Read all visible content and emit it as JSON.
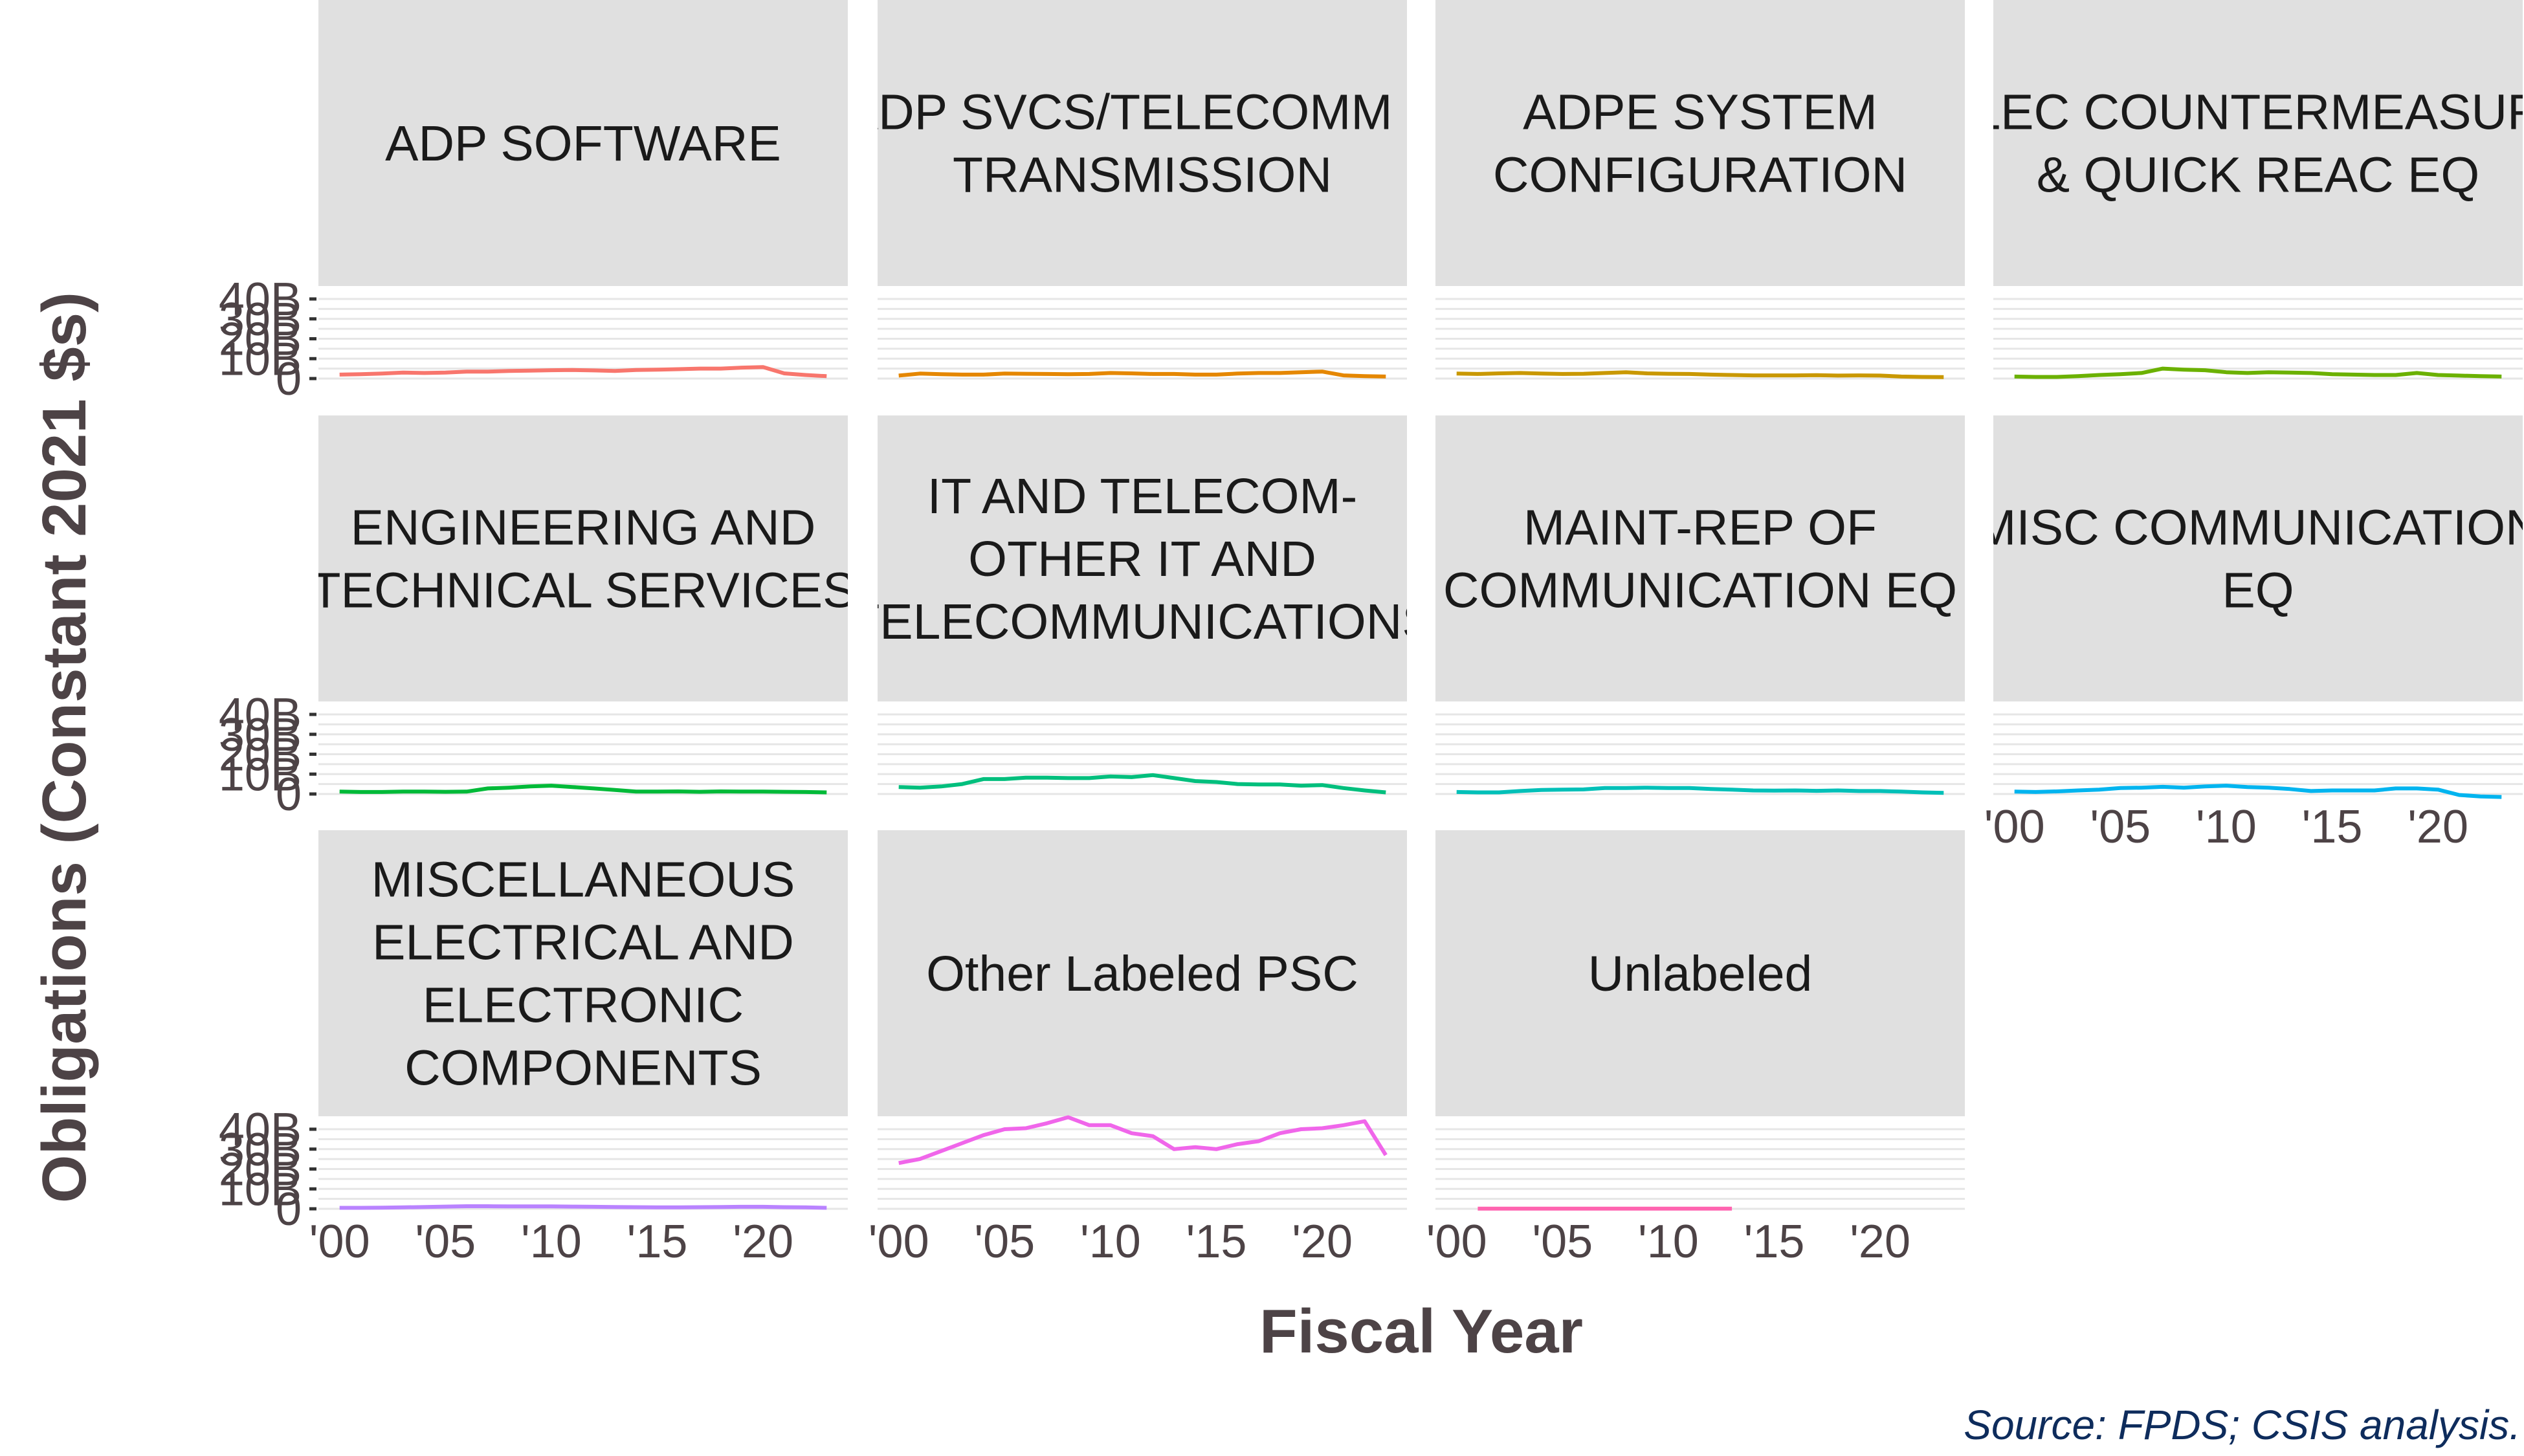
{
  "chart_data": {
    "type": "line",
    "ylabel": "Obligations (Constant 2021 $s)",
    "xlabel": "Fiscal Year",
    "caption": "Source: FPDS; CSIS analysis.",
    "x_range": [
      1999,
      2024
    ],
    "x_ticks": [
      2000,
      2005,
      2010,
      2015,
      2020
    ],
    "x_tick_labels": [
      "'00",
      "'05",
      "'10",
      "'15",
      "'20"
    ],
    "y_range": [
      0,
      40000000000
    ],
    "y_ticks": [
      0,
      10000000000,
      20000000000,
      30000000000,
      40000000000
    ],
    "y_tick_labels": [
      "0",
      "10B",
      "20B",
      "30B",
      "40B"
    ],
    "panels": [
      {
        "title": "ADP SOFTWARE",
        "color": "#F8766D",
        "x": [
          2000,
          2001,
          2002,
          2003,
          2004,
          2005,
          2006,
          2007,
          2008,
          2009,
          2010,
          2011,
          2012,
          2013,
          2014,
          2015,
          2016,
          2017,
          2018,
          2019,
          2020,
          2021,
          2022,
          2023
        ],
        "values": [
          2000000000.0,
          2200000000.0,
          2500000000.0,
          3000000000.0,
          2800000000.0,
          3000000000.0,
          3500000000.0,
          3500000000.0,
          3800000000.0,
          4000000000.0,
          4200000000.0,
          4300000000.0,
          4100000000.0,
          3800000000.0,
          4300000000.0,
          4500000000.0,
          4700000000.0,
          5000000000.0,
          5000000000.0,
          5500000000.0,
          5800000000.0,
          2600000000.0,
          1800000000.0,
          1200000000.0
        ]
      },
      {
        "title": "ADP SVCS/TELECOMM & TRANSMISSION",
        "color": "#E58700",
        "x": [
          2000,
          2001,
          2002,
          2003,
          2004,
          2005,
          2006,
          2007,
          2008,
          2009,
          2010,
          2011,
          2012,
          2013,
          2014,
          2015,
          2016,
          2017,
          2018,
          2019,
          2020,
          2021,
          2022,
          2023
        ],
        "values": [
          1500000000.0,
          2500000000.0,
          2200000000.0,
          2000000000.0,
          2000000000.0,
          2500000000.0,
          2400000000.0,
          2300000000.0,
          2200000000.0,
          2300000000.0,
          2800000000.0,
          2600000000.0,
          2300000000.0,
          2300000000.0,
          2000000000.0,
          2000000000.0,
          2500000000.0,
          2800000000.0,
          2800000000.0,
          3200000000.0,
          3500000000.0,
          1600000000.0,
          1200000000.0,
          1000000000.0
        ]
      },
      {
        "title": "ADPE SYSTEM CONFIGURATION",
        "color": "#C99800",
        "x": [
          2000,
          2001,
          2002,
          2003,
          2004,
          2005,
          2006,
          2007,
          2008,
          2009,
          2010,
          2011,
          2012,
          2013,
          2014,
          2015,
          2016,
          2017,
          2018,
          2019,
          2020,
          2021,
          2022,
          2023
        ],
        "values": [
          2500000000.0,
          2300000000.0,
          2600000000.0,
          2800000000.0,
          2500000000.0,
          2300000000.0,
          2400000000.0,
          2800000000.0,
          3200000000.0,
          2600000000.0,
          2400000000.0,
          2300000000.0,
          2000000000.0,
          1800000000.0,
          1600000000.0,
          1600000000.0,
          1600000000.0,
          1700000000.0,
          1500000000.0,
          1600000000.0,
          1500000000.0,
          1000000000.0,
          800000000.0,
          700000000.0
        ]
      },
      {
        "title": "ELEC COUNTERMEASURE & QUICK REAC EQ",
        "color": "#6BB100",
        "x": [
          2000,
          2001,
          2002,
          2003,
          2004,
          2005,
          2006,
          2007,
          2008,
          2009,
          2010,
          2011,
          2012,
          2013,
          2014,
          2015,
          2016,
          2017,
          2018,
          2019,
          2020,
          2021,
          2022,
          2023
        ],
        "values": [
          1000000000.0,
          800000000.0,
          800000000.0,
          1200000000.0,
          1800000000.0,
          2200000000.0,
          2800000000.0,
          5000000000.0,
          4500000000.0,
          4200000000.0,
          3200000000.0,
          2800000000.0,
          3200000000.0,
          3000000000.0,
          2800000000.0,
          2200000000.0,
          2000000000.0,
          1800000000.0,
          1800000000.0,
          2800000000.0,
          1800000000.0,
          1500000000.0,
          1200000000.0,
          1000000000.0
        ]
      },
      {
        "title": "ENGINEERING AND TECHNICAL SERVICES",
        "color": "#00BA38",
        "x": [
          2000,
          2001,
          2002,
          2003,
          2004,
          2005,
          2006,
          2007,
          2008,
          2009,
          2010,
          2011,
          2012,
          2013,
          2014,
          2015,
          2016,
          2017,
          2018,
          2019,
          2020,
          2021,
          2022,
          2023
        ],
        "values": [
          1200000000.0,
          1000000000.0,
          1000000000.0,
          1200000000.0,
          1200000000.0,
          1100000000.0,
          1200000000.0,
          2800000000.0,
          3200000000.0,
          3800000000.0,
          4200000000.0,
          3500000000.0,
          2800000000.0,
          2000000000.0,
          1200000000.0,
          1200000000.0,
          1300000000.0,
          1100000000.0,
          1300000000.0,
          1200000000.0,
          1200000000.0,
          1100000000.0,
          1000000000.0,
          800000000.0
        ]
      },
      {
        "title": "IT AND TELECOM- OTHER IT AND TELECOMMUNICATIONS",
        "color": "#00BF7D",
        "x": [
          2000,
          2001,
          2002,
          2003,
          2004,
          2005,
          2006,
          2007,
          2008,
          2009,
          2010,
          2011,
          2012,
          2013,
          2014,
          2015,
          2016,
          2017,
          2018,
          2019,
          2020,
          2021,
          2022,
          2023
        ],
        "values": [
          3500000000.0,
          3200000000.0,
          3800000000.0,
          5000000000.0,
          7500000000.0,
          7500000000.0,
          8200000000.0,
          8200000000.0,
          8000000000.0,
          8000000000.0,
          8800000000.0,
          8500000000.0,
          9500000000.0,
          8000000000.0,
          6500000000.0,
          6000000000.0,
          5000000000.0,
          4800000000.0,
          4800000000.0,
          4200000000.0,
          4500000000.0,
          3000000000.0,
          1800000000.0,
          800000000.0
        ]
      },
      {
        "title": "MAINT-REP OF COMMUNICATION EQ",
        "color": "#00C0B8",
        "x": [
          2000,
          2001,
          2002,
          2003,
          2004,
          2005,
          2006,
          2007,
          2008,
          2009,
          2010,
          2011,
          2012,
          2013,
          2014,
          2015,
          2016,
          2017,
          2018,
          2019,
          2020,
          2021,
          2022,
          2023
        ],
        "values": [
          1000000000.0,
          800000000.0,
          800000000.0,
          1500000000.0,
          2000000000.0,
          2200000000.0,
          2300000000.0,
          3000000000.0,
          3000000000.0,
          3200000000.0,
          3000000000.0,
          3000000000.0,
          2500000000.0,
          2200000000.0,
          1800000000.0,
          1700000000.0,
          1800000000.0,
          1600000000.0,
          1800000000.0,
          1500000000.0,
          1500000000.0,
          1200000000.0,
          800000000.0,
          600000000.0
        ]
      },
      {
        "title": "MISC COMMUNICATION EQ",
        "color": "#00B4EF",
        "x": [
          2000,
          2001,
          2002,
          2003,
          2004,
          2005,
          2006,
          2007,
          2008,
          2009,
          2010,
          2011,
          2012,
          2013,
          2014,
          2015,
          2016,
          2017,
          2018,
          2019,
          2020,
          2021,
          2022,
          2023
        ],
        "values": [
          1200000000.0,
          1000000000.0,
          1300000000.0,
          1800000000.0,
          2200000000.0,
          3000000000.0,
          3200000000.0,
          3600000000.0,
          3200000000.0,
          3800000000.0,
          4200000000.0,
          3500000000.0,
          3200000000.0,
          2500000000.0,
          1500000000.0,
          1800000000.0,
          1800000000.0,
          1800000000.0,
          2800000000.0,
          2800000000.0,
          2200000000.0,
          -500000000.0,
          -1200000000.0,
          -1500000000.0
        ]
      },
      {
        "title": "MISCELLANEOUS ELECTRICAL AND ELECTRONIC COMPONENTS",
        "color": "#B983FF",
        "x": [
          2000,
          2001,
          2002,
          2003,
          2004,
          2005,
          2006,
          2007,
          2008,
          2009,
          2010,
          2011,
          2012,
          2013,
          2014,
          2015,
          2016,
          2017,
          2018,
          2019,
          2020,
          2021,
          2022,
          2023
        ],
        "values": [
          500000000.0,
          500000000.0,
          600000000.0,
          700000000.0,
          900000000.0,
          1100000000.0,
          1300000000.0,
          1300000000.0,
          1200000000.0,
          1200000000.0,
          1200000000.0,
          1100000000.0,
          1000000000.0,
          900000000.0,
          800000000.0,
          700000000.0,
          700000000.0,
          800000000.0,
          900000000.0,
          1000000000.0,
          1000000000.0,
          800000000.0,
          700000000.0,
          500000000.0
        ]
      },
      {
        "title": "Other Labeled PSC",
        "color": "#F066EA",
        "x": [
          2000,
          2001,
          2002,
          2003,
          2004,
          2005,
          2006,
          2007,
          2008,
          2009,
          2010,
          2011,
          2012,
          2013,
          2014,
          2015,
          2016,
          2017,
          2018,
          2019,
          2020,
          2021,
          2022,
          2023
        ],
        "values": [
          23000000000.0,
          25000000000.0,
          29000000000.0,
          33000000000.0,
          37000000000.0,
          40000000000.0,
          40500000000.0,
          43000000000.0,
          46000000000.0,
          42000000000.0,
          42000000000.0,
          38000000000.0,
          36500000000.0,
          30000000000.0,
          31000000000.0,
          30000000000.0,
          32500000000.0,
          34000000000.0,
          38000000000.0,
          40000000000.0,
          40500000000.0,
          42000000000.0,
          44000000000.0,
          27000000000.0
        ]
      },
      {
        "title": "Unlabeled",
        "color": "#FF64B0",
        "x": [
          2001,
          2002,
          2003,
          2004,
          2005,
          2006,
          2007,
          2008,
          2009,
          2010,
          2011,
          2012,
          2013
        ],
        "values": [
          100000000.0,
          100000000.0,
          100000000.0,
          100000000.0,
          100000000.0,
          100000000.0,
          100000000.0,
          100000000.0,
          100000000.0,
          100000000.0,
          100000000.0,
          100000000.0,
          100000000.0
        ]
      }
    ]
  }
}
